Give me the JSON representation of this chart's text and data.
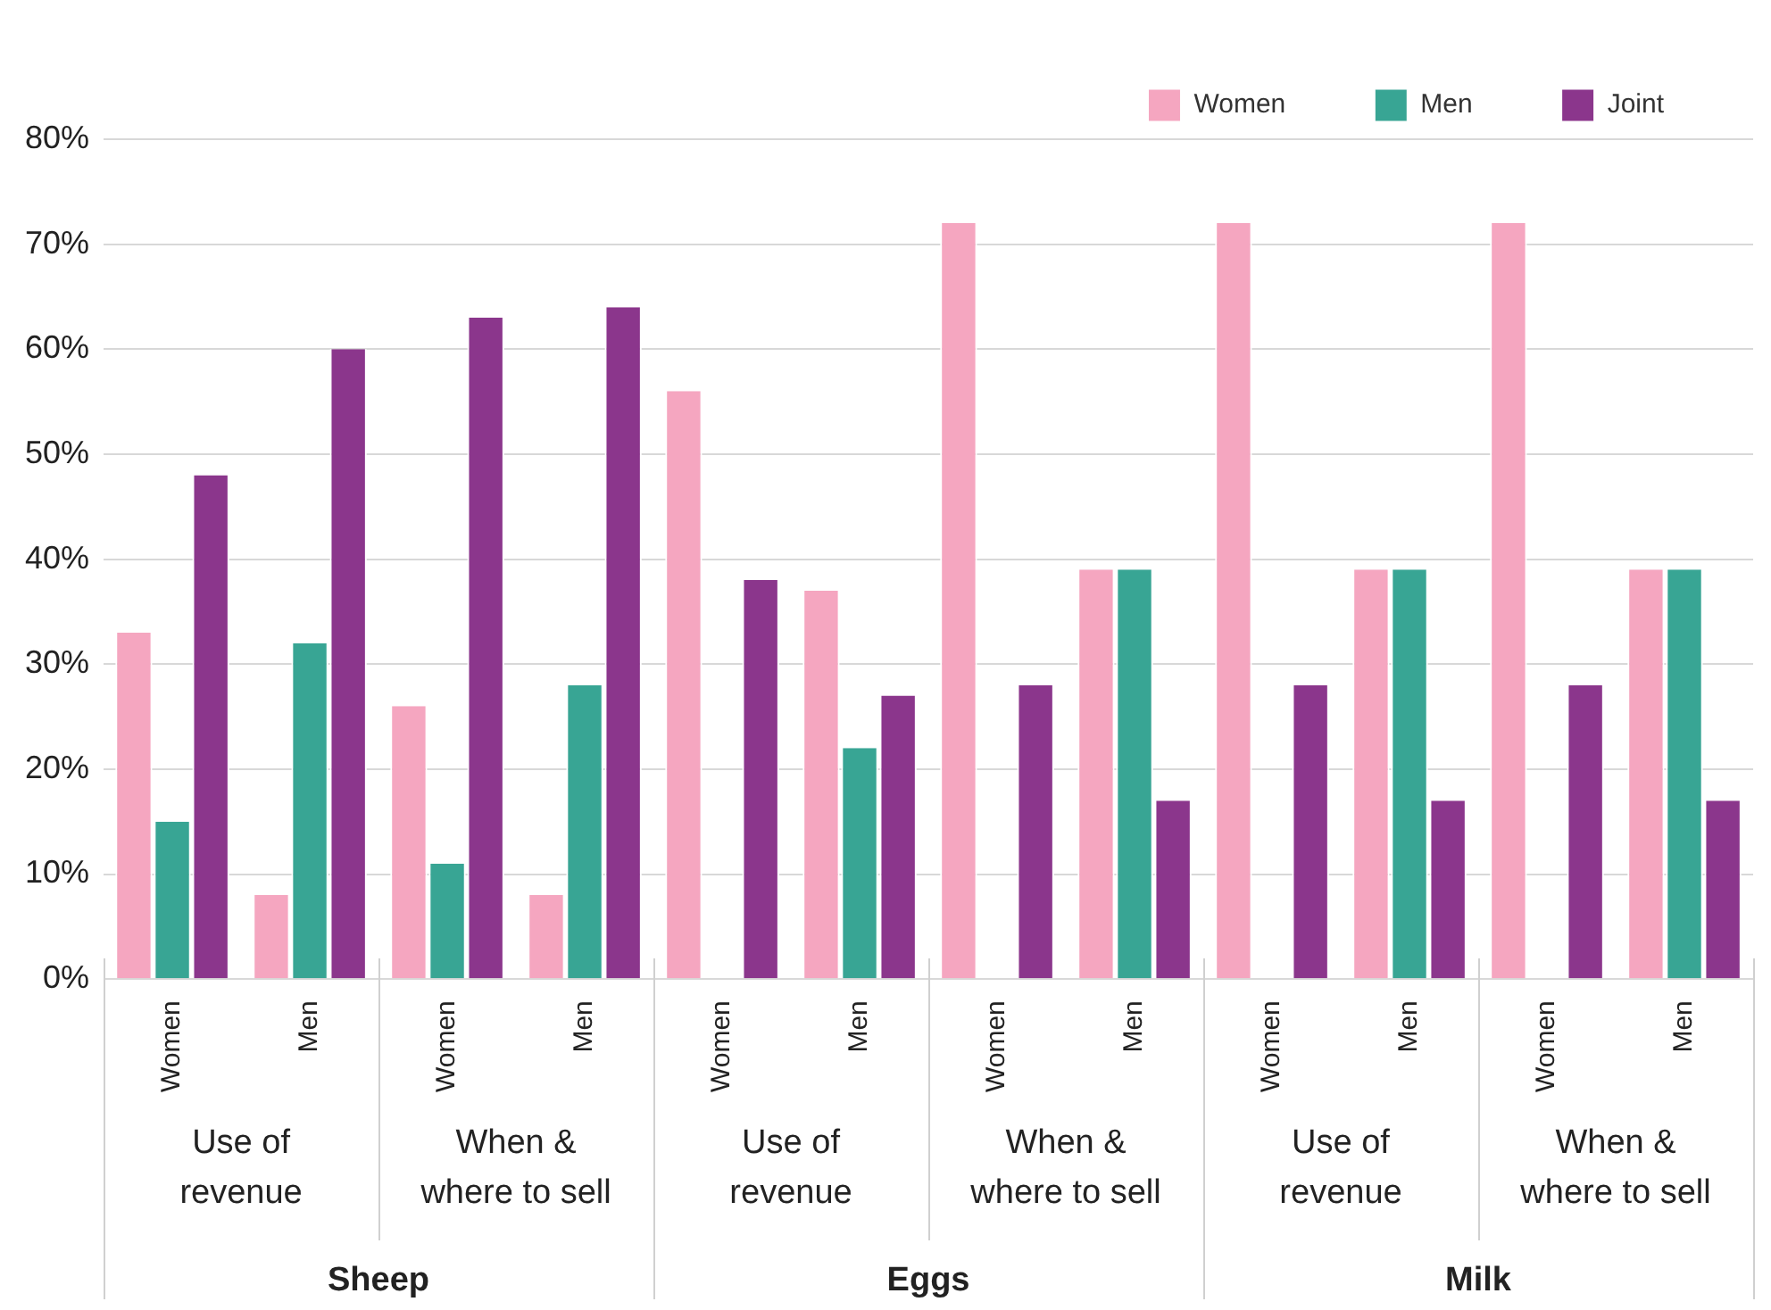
{
  "chart_data": {
    "type": "bar",
    "categories": [
      "Women",
      "Men",
      "Women",
      "Men",
      "Women",
      "Men",
      "Women",
      "Men",
      "Women",
      "Men",
      "Women",
      "Men"
    ],
    "series": [
      {
        "name": "Women",
        "color": "#f5a6c0",
        "values": [
          33,
          8,
          26,
          8,
          56,
          37,
          72,
          39,
          72,
          39,
          72,
          39
        ]
      },
      {
        "name": "Men",
        "color": "#38a594",
        "values": [
          15,
          32,
          11,
          28,
          0,
          22,
          0,
          39,
          0,
          39,
          0,
          39
        ]
      },
      {
        "name": "Joint",
        "color": "#8b368c",
        "values": [
          48,
          60,
          63,
          64,
          38,
          27,
          28,
          17,
          28,
          17,
          28,
          17
        ]
      }
    ],
    "ylim": [
      0,
      80
    ],
    "yticks": [
      {
        "value": 0,
        "label": "0%"
      },
      {
        "value": 10,
        "label": "10%"
      },
      {
        "value": 20,
        "label": "20%"
      },
      {
        "value": 30,
        "label": "30%"
      },
      {
        "value": 40,
        "label": "40%"
      },
      {
        "value": 50,
        "label": "50%"
      },
      {
        "value": 60,
        "label": "60%"
      },
      {
        "value": 70,
        "label": "70%"
      },
      {
        "value": 80,
        "label": "80%"
      }
    ],
    "grid": "y",
    "legend": "top right",
    "annotations": [
      "Use of revenue",
      "When & where to sell",
      "Use of revenue",
      "When & where to sell",
      "Use of revenue",
      "When & where to sell",
      "Sheep",
      "Eggs",
      "Milk"
    ]
  }
}
